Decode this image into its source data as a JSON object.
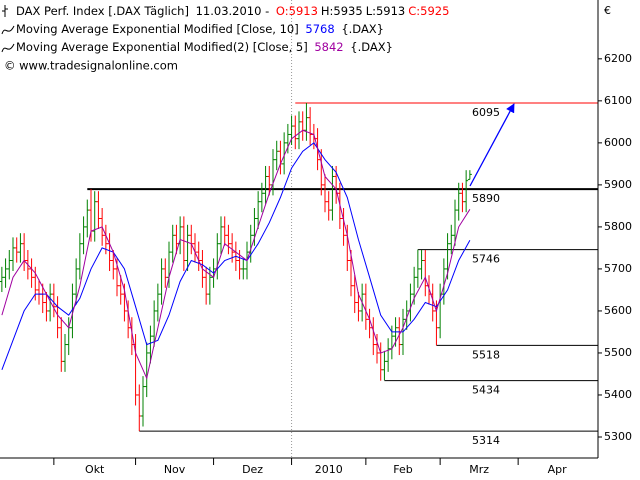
{
  "chart_data": {
    "type": "ohlc",
    "title": "DAX Perf. Index [.DAX Täglich]",
    "date": "11.03.2010 -",
    "quotes": [
      {
        "value": 5913,
        "label": "O:5913",
        "color": "#ff0000"
      },
      {
        "value": 5935,
        "label": "H:5935",
        "color": "#000000"
      },
      {
        "value": 5913,
        "label": "L:5913",
        "color": "#000000"
      },
      {
        "value": 5925,
        "label": "C:5925",
        "color": "#ff0000"
      }
    ],
    "symbol": "{.DAX}",
    "source": "© www.tradesignalonline.com",
    "y_unit": "€",
    "up_color": "#008000",
    "down_color": "#ff0000",
    "xlim": [
      -0.5,
      160.5
    ],
    "ylim": [
      5250,
      6340
    ],
    "yticks": [
      5300,
      5400,
      5500,
      5600,
      5700,
      5800,
      5900,
      6000,
      6100,
      6200
    ],
    "xticks": [
      {
        "value": 14,
        "label": "Okt"
      },
      {
        "value": 36,
        "label": "Nov"
      },
      {
        "value": 57,
        "label": "Dez"
      },
      {
        "value": 78,
        "label": "2010",
        "grid": true
      },
      {
        "value": 98,
        "label": "Feb"
      },
      {
        "value": 118,
        "label": "Mrz"
      },
      {
        "value": 139,
        "label": "Apr"
      }
    ],
    "bars": [
      [
        5670,
        5705,
        5645,
        5680
      ],
      [
        5680,
        5725,
        5655,
        5700
      ],
      [
        5700,
        5745,
        5675,
        5720
      ],
      [
        5720,
        5775,
        5695,
        5750
      ],
      [
        5750,
        5775,
        5715,
        5740
      ],
      [
        5740,
        5785,
        5715,
        5760
      ],
      [
        5760,
        5785,
        5695,
        5720
      ],
      [
        5720,
        5745,
        5675,
        5700
      ],
      [
        5700,
        5725,
        5655,
        5680
      ],
      [
        5680,
        5705,
        5625,
        5650
      ],
      [
        5650,
        5675,
        5615,
        5640
      ],
      [
        5640,
        5665,
        5595,
        5620
      ],
      [
        5620,
        5645,
        5575,
        5600
      ],
      [
        5600,
        5665,
        5575,
        5640
      ],
      [
        5640,
        5665,
        5585,
        5610
      ],
      [
        5610,
        5635,
        5535,
        5560
      ],
      [
        5560,
        5585,
        5455,
        5480
      ],
      [
        5480,
        5545,
        5455,
        5520
      ],
      [
        5520,
        5585,
        5495,
        5560
      ],
      [
        5560,
        5665,
        5535,
        5640
      ],
      [
        5640,
        5725,
        5615,
        5700
      ],
      [
        5700,
        5785,
        5675,
        5760
      ],
      [
        5760,
        5825,
        5735,
        5800
      ],
      [
        5800,
        5865,
        5775,
        5840
      ],
      [
        5840,
        5890,
        5765,
        5790
      ],
      [
        5790,
        5885,
        5765,
        5860
      ],
      [
        5860,
        5885,
        5795,
        5820
      ],
      [
        5820,
        5845,
        5755,
        5780
      ],
      [
        5780,
        5805,
        5735,
        5760
      ],
      [
        5760,
        5785,
        5695,
        5720
      ],
      [
        5720,
        5745,
        5675,
        5700
      ],
      [
        5700,
        5725,
        5635,
        5660
      ],
      [
        5660,
        5685,
        5615,
        5640
      ],
      [
        5640,
        5665,
        5575,
        5600
      ],
      [
        5600,
        5625,
        5535,
        5560
      ],
      [
        5560,
        5585,
        5495,
        5520
      ],
      [
        5520,
        5545,
        5375,
        5400
      ],
      [
        5400,
        5425,
        5314,
        5350
      ],
      [
        5350,
        5445,
        5325,
        5420
      ],
      [
        5420,
        5525,
        5395,
        5500
      ],
      [
        5500,
        5565,
        5475,
        5540
      ],
      [
        5540,
        5625,
        5515,
        5600
      ],
      [
        5600,
        5665,
        5575,
        5640
      ],
      [
        5640,
        5725,
        5615,
        5700
      ],
      [
        5700,
        5725,
        5655,
        5680
      ],
      [
        5680,
        5765,
        5655,
        5740
      ],
      [
        5740,
        5805,
        5715,
        5780
      ],
      [
        5780,
        5805,
        5735,
        5760
      ],
      [
        5760,
        5825,
        5735,
        5800
      ],
      [
        5800,
        5825,
        5695,
        5720
      ],
      [
        5720,
        5805,
        5695,
        5780
      ],
      [
        5780,
        5805,
        5735,
        5760
      ],
      [
        5760,
        5785,
        5715,
        5740
      ],
      [
        5740,
        5765,
        5695,
        5720
      ],
      [
        5720,
        5745,
        5655,
        5680
      ],
      [
        5680,
        5705,
        5615,
        5640
      ],
      [
        5640,
        5705,
        5615,
        5680
      ],
      [
        5680,
        5725,
        5655,
        5700
      ],
      [
        5700,
        5785,
        5675,
        5760
      ],
      [
        5760,
        5825,
        5735,
        5800
      ],
      [
        5800,
        5825,
        5755,
        5780
      ],
      [
        5780,
        5805,
        5735,
        5760
      ],
      [
        5760,
        5785,
        5715,
        5740
      ],
      [
        5740,
        5765,
        5695,
        5720
      ],
      [
        5720,
        5745,
        5675,
        5700
      ],
      [
        5700,
        5725,
        5675,
        5700
      ],
      [
        5700,
        5765,
        5675,
        5740
      ],
      [
        5740,
        5805,
        5715,
        5780
      ],
      [
        5780,
        5845,
        5755,
        5820
      ],
      [
        5820,
        5885,
        5795,
        5860
      ],
      [
        5860,
        5905,
        5835,
        5880
      ],
      [
        5880,
        5945,
        5855,
        5920
      ],
      [
        5920,
        5945,
        5875,
        5900
      ],
      [
        5900,
        5985,
        5875,
        5960
      ],
      [
        5960,
        6005,
        5935,
        5980
      ],
      [
        5980,
        6005,
        5925,
        5950
      ],
      [
        5950,
        6025,
        5925,
        6000
      ],
      [
        6000,
        6045,
        5975,
        6020
      ],
      [
        6020,
        6065,
        5995,
        6040
      ],
      [
        6040,
        6065,
        5985,
        6010
      ],
      [
        6010,
        6075,
        5985,
        6050
      ],
      [
        6050,
        6075,
        6005,
        6030
      ],
      [
        6030,
        6095,
        6005,
        6060
      ],
      [
        6060,
        6085,
        5995,
        6020
      ],
      [
        6020,
        6045,
        5985,
        6010
      ],
      [
        6010,
        6035,
        5935,
        5960
      ],
      [
        5960,
        5985,
        5875,
        5900
      ],
      [
        5900,
        5925,
        5835,
        5860
      ],
      [
        5860,
        5885,
        5815,
        5840
      ],
      [
        5840,
        5945,
        5815,
        5920
      ],
      [
        5920,
        5945,
        5855,
        5880
      ],
      [
        5880,
        5905,
        5795,
        5820
      ],
      [
        5820,
        5845,
        5755,
        5780
      ],
      [
        5780,
        5805,
        5695,
        5720
      ],
      [
        5720,
        5745,
        5635,
        5660
      ],
      [
        5660,
        5685,
        5595,
        5620
      ],
      [
        5620,
        5645,
        5575,
        5600
      ],
      [
        5600,
        5665,
        5575,
        5640
      ],
      [
        5640,
        5665,
        5555,
        5580
      ],
      [
        5580,
        5605,
        5535,
        5560
      ],
      [
        5560,
        5585,
        5495,
        5520
      ],
      [
        5520,
        5545,
        5475,
        5500
      ],
      [
        5500,
        5525,
        5434,
        5460
      ],
      [
        5460,
        5505,
        5435,
        5480
      ],
      [
        5480,
        5535,
        5455,
        5510
      ],
      [
        5510,
        5565,
        5485,
        5540
      ],
      [
        5540,
        5585,
        5515,
        5560
      ],
      [
        5560,
        5585,
        5495,
        5520
      ],
      [
        5520,
        5605,
        5495,
        5580
      ],
      [
        5580,
        5625,
        5555,
        5600
      ],
      [
        5600,
        5665,
        5575,
        5640
      ],
      [
        5640,
        5705,
        5615,
        5680
      ],
      [
        5680,
        5746,
        5655,
        5700
      ],
      [
        5700,
        5745,
        5675,
        5720
      ],
      [
        5720,
        5745,
        5635,
        5660
      ],
      [
        5660,
        5685,
        5615,
        5640
      ],
      [
        5640,
        5665,
        5575,
        5600
      ],
      [
        5600,
        5625,
        5518,
        5560
      ],
      [
        5560,
        5665,
        5535,
        5640
      ],
      [
        5640,
        5725,
        5615,
        5700
      ],
      [
        5700,
        5785,
        5675,
        5760
      ],
      [
        5760,
        5805,
        5735,
        5780
      ],
      [
        5780,
        5865,
        5755,
        5840
      ],
      [
        5840,
        5905,
        5815,
        5880
      ],
      [
        5880,
        5905,
        5835,
        5860
      ],
      [
        5860,
        5935,
        5835,
        5910
      ],
      [
        5913,
        5935,
        5913,
        5925
      ]
    ],
    "series": [
      {
        "name": "Moving Average Exponential Modified [Close, 10]",
        "color": "#0000ff",
        "x": [
          0,
          3,
          6,
          9,
          12,
          15,
          18,
          21,
          24,
          27,
          30,
          33,
          36,
          39,
          42,
          45,
          48,
          51,
          54,
          57,
          60,
          63,
          66,
          69,
          72,
          75,
          78,
          81,
          84,
          87,
          90,
          93,
          96,
          99,
          102,
          105,
          108,
          111,
          114,
          117,
          120,
          123,
          126
        ],
        "values": [
          5460,
          5530,
          5600,
          5640,
          5640,
          5610,
          5590,
          5630,
          5700,
          5750,
          5740,
          5700,
          5610,
          5520,
          5530,
          5590,
          5670,
          5720,
          5710,
          5690,
          5720,
          5730,
          5720,
          5760,
          5810,
          5870,
          5940,
          5980,
          6000,
          5960,
          5930,
          5870,
          5770,
          5680,
          5590,
          5550,
          5550,
          5580,
          5620,
          5610,
          5650,
          5720,
          5768
        ]
      },
      {
        "name": "Moving Average Exponential Modified(2) [Close, 5]",
        "color": "#a000a0",
        "x": [
          0,
          3,
          6,
          9,
          12,
          15,
          18,
          21,
          24,
          27,
          30,
          33,
          36,
          39,
          42,
          45,
          48,
          51,
          54,
          57,
          60,
          63,
          66,
          69,
          72,
          75,
          78,
          81,
          84,
          87,
          90,
          93,
          96,
          99,
          102,
          105,
          108,
          111,
          114,
          117,
          120,
          123,
          126
        ],
        "values": [
          5590,
          5680,
          5720,
          5690,
          5640,
          5590,
          5560,
          5660,
          5790,
          5800,
          5740,
          5650,
          5500,
          5440,
          5560,
          5680,
          5770,
          5760,
          5700,
          5680,
          5760,
          5740,
          5720,
          5800,
          5880,
          5950,
          6010,
          6030,
          6020,
          5920,
          5890,
          5780,
          5640,
          5580,
          5500,
          5510,
          5560,
          5630,
          5680,
          5600,
          5690,
          5800,
          5842
        ]
      }
    ],
    "levels": [
      {
        "value": 6095,
        "start": 79,
        "color": "#ff0000",
        "line_width": 1
      },
      {
        "value": 5890,
        "start": 23,
        "color": "#000000",
        "line_width": 2
      },
      {
        "value": 5746,
        "start": 112,
        "color": "#000000",
        "line_width": 1
      },
      {
        "value": 5518,
        "start": 117,
        "color": "#000000",
        "line_width": 1
      },
      {
        "value": 5434,
        "start": 103,
        "color": "#000000",
        "line_width": 1
      },
      {
        "value": 5314,
        "start": 37,
        "color": "#000000",
        "line_width": 1
      }
    ]
  }
}
